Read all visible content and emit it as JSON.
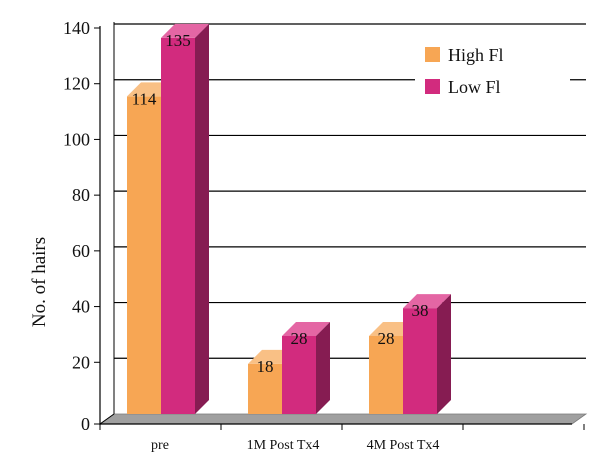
{
  "chart_data": {
    "type": "bar",
    "title": "",
    "xlabel": "",
    "ylabel": "No. of hairs",
    "categories": [
      "pre",
      "1M  Post  Tx4",
      "4M  Post  Tx4"
    ],
    "series": [
      {
        "name": "High Fl",
        "values": [
          114,
          18,
          28
        ],
        "color": "#f7a654",
        "top": "#f9c085",
        "side": "#c47e36"
      },
      {
        "name": "Low Fl",
        "values": [
          135,
          28,
          38
        ],
        "color": "#d22b7e",
        "top": "#e466a4",
        "side": "#861c52"
      }
    ],
    "ylim": [
      0,
      140
    ],
    "yticks": [
      0,
      20,
      40,
      60,
      80,
      100,
      120,
      140
    ],
    "grid": true,
    "legend_position": "top-right",
    "floor_color": "#a0a0a0"
  }
}
